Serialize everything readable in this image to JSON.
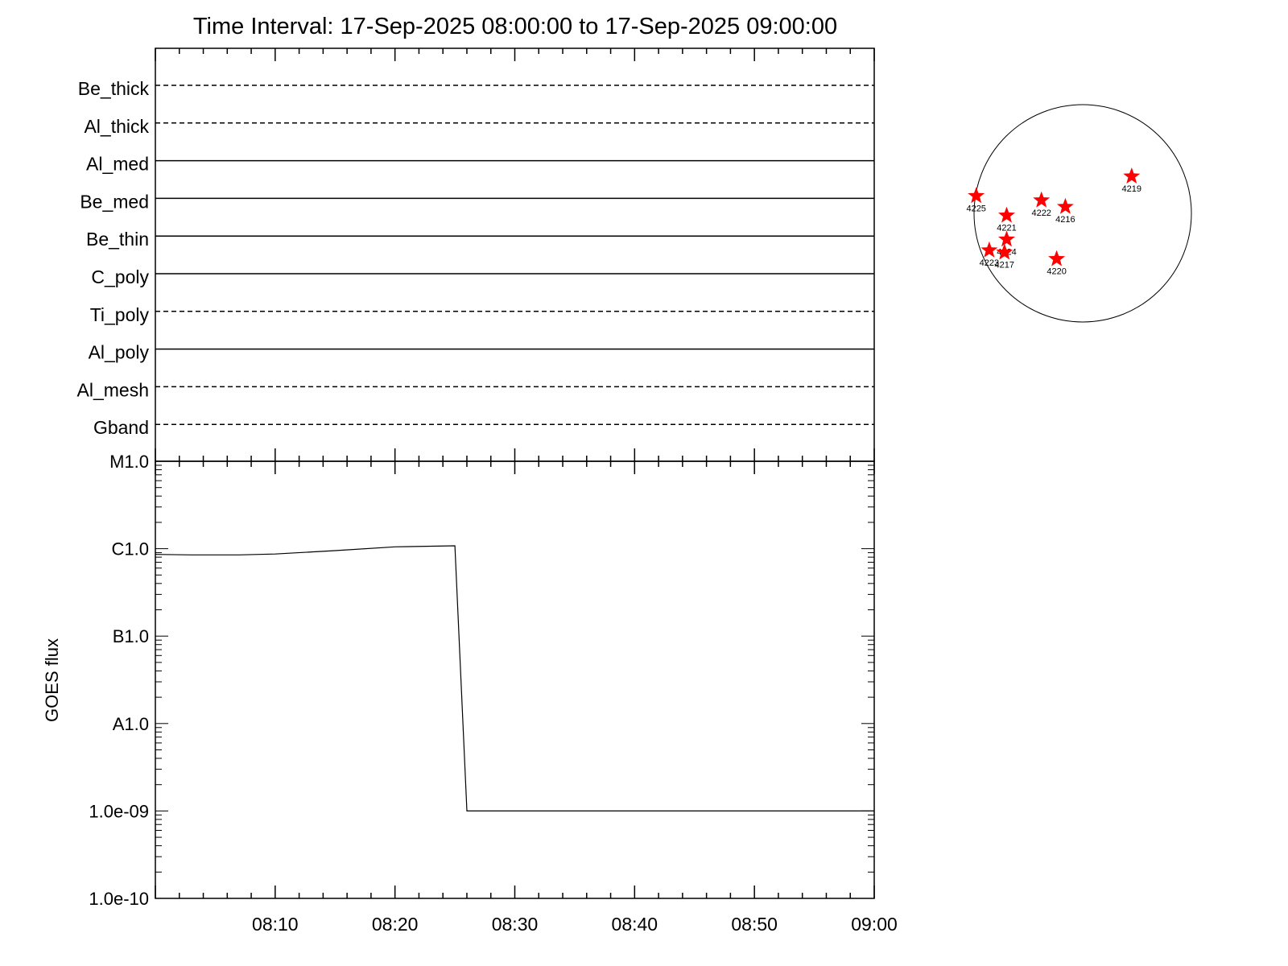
{
  "chart_data": [
    {
      "type": "timeline",
      "title": "Time Interval: 17-Sep-2025 08:00:00 to 17-Sep-2025 09:00:00",
      "x_range_minutes": [
        0,
        60
      ],
      "channels": [
        {
          "name": "Be_thick",
          "style": "dashed"
        },
        {
          "name": "Al_thick",
          "style": "dashed"
        },
        {
          "name": "Al_med",
          "style": "solid"
        },
        {
          "name": "Be_med",
          "style": "solid"
        },
        {
          "name": "Be_thin",
          "style": "solid"
        },
        {
          "name": "C_poly",
          "style": "solid"
        },
        {
          "name": "Ti_poly",
          "style": "dashed"
        },
        {
          "name": "Al_poly",
          "style": "solid"
        },
        {
          "name": "Al_mesh",
          "style": "dashed"
        },
        {
          "name": "Gband",
          "style": "dashed"
        }
      ]
    },
    {
      "type": "line",
      "ylabel": "GOES flux",
      "y_scale": "log",
      "ylim": [
        1e-10,
        1e-05
      ],
      "y_ticks": [
        {
          "value": 1e-10,
          "label": "1.0e-10"
        },
        {
          "value": 1e-09,
          "label": "1.0e-09"
        },
        {
          "value": 1e-08,
          "label": "A1.0"
        },
        {
          "value": 1e-07,
          "label": "B1.0"
        },
        {
          "value": 1e-06,
          "label": "C1.0"
        },
        {
          "value": 1e-05,
          "label": "M1.0"
        }
      ],
      "x_ticks": [
        "08:10",
        "08:20",
        "08:30",
        "08:40",
        "08:50",
        "09:00"
      ],
      "x_tick_minutes": [
        10,
        20,
        30,
        40,
        50,
        60
      ],
      "series": [
        {
          "x_minutes": [
            0,
            3,
            7,
            10,
            15,
            20,
            25,
            26,
            30,
            40,
            50,
            60
          ],
          "values": [
            8.6e-07,
            8.5e-07,
            8.5e-07,
            8.7e-07,
            9.5e-07,
            1.05e-06,
            1.08e-06,
            1e-09,
            1e-09,
            1e-09,
            1e-09,
            1e-09
          ]
        }
      ]
    },
    {
      "type": "scatter",
      "x_range": [
        -1,
        1
      ],
      "y_range": [
        -1,
        1
      ],
      "marker_color": "#ff0000",
      "points": [
        {
          "label": "4219",
          "x": 0.45,
          "y": 0.34
        },
        {
          "label": "4225",
          "x": -0.98,
          "y": 0.16
        },
        {
          "label": "4222",
          "x": -0.38,
          "y": 0.12
        },
        {
          "label": "4216",
          "x": -0.16,
          "y": 0.06
        },
        {
          "label": "4221",
          "x": -0.7,
          "y": -0.02
        },
        {
          "label": "4224",
          "x": -0.7,
          "y": -0.24
        },
        {
          "label": "4223",
          "x": -0.86,
          "y": -0.34
        },
        {
          "label": "4217",
          "x": -0.72,
          "y": -0.36
        },
        {
          "label": "4220",
          "x": -0.24,
          "y": -0.42
        }
      ]
    }
  ]
}
